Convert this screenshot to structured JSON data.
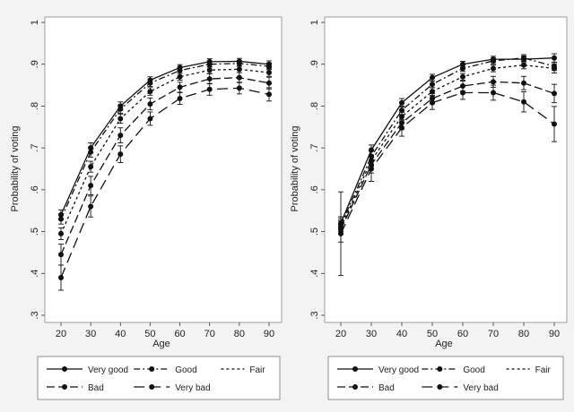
{
  "chart_data": [
    {
      "type": "line",
      "title": "",
      "xlabel": "Age",
      "ylabel": "Probability of voting",
      "x": [
        20,
        30,
        40,
        50,
        60,
        70,
        80,
        90
      ],
      "xticks": [
        "20",
        "30",
        "40",
        "50",
        "60",
        "70",
        "80",
        "90"
      ],
      "ylim": [
        0.3,
        1.0
      ],
      "yticks": [
        ".3",
        ".4",
        ".5",
        ".6",
        ".7",
        ".8",
        ".9",
        "1"
      ],
      "grid": false,
      "legend_placement": "bottom",
      "series": [
        {
          "name": "Very good",
          "dash": "solid",
          "values": [
            0.54,
            0.7,
            0.8,
            0.862,
            0.892,
            0.906,
            0.907,
            0.9
          ],
          "err": [
            0.012,
            0.012,
            0.01,
            0.008,
            0.007,
            0.007,
            0.007,
            0.008
          ]
        },
        {
          "name": "Good",
          "dash": "dashdot",
          "values": [
            0.53,
            0.69,
            0.793,
            0.855,
            0.885,
            0.9,
            0.902,
            0.895
          ],
          "err": [
            0.012,
            0.012,
            0.01,
            0.008,
            0.007,
            0.007,
            0.007,
            0.008
          ]
        },
        {
          "name": "Fair",
          "dash": "shortdash",
          "values": [
            0.495,
            0.655,
            0.77,
            0.835,
            0.87,
            0.886,
            0.888,
            0.88
          ],
          "err": [
            0.014,
            0.013,
            0.011,
            0.009,
            0.008,
            0.008,
            0.008,
            0.009
          ]
        },
        {
          "name": "Bad",
          "dash": "longdash",
          "values": [
            0.445,
            0.61,
            0.73,
            0.805,
            0.845,
            0.865,
            0.868,
            0.855
          ],
          "err": [
            0.025,
            0.022,
            0.018,
            0.014,
            0.012,
            0.012,
            0.012,
            0.014
          ]
        },
        {
          "name": "Very bad",
          "dash": "longdash2",
          "values": [
            0.39,
            0.56,
            0.685,
            0.77,
            0.818,
            0.84,
            0.843,
            0.828
          ],
          "err": [
            0.03,
            0.025,
            0.02,
            0.016,
            0.014,
            0.014,
            0.014,
            0.016
          ]
        }
      ]
    },
    {
      "type": "line",
      "title": "",
      "xlabel": "Age",
      "ylabel": "Probability of voting",
      "x": [
        20,
        30,
        40,
        50,
        60,
        70,
        80,
        90
      ],
      "xticks": [
        "20",
        "30",
        "40",
        "50",
        "60",
        "70",
        "80",
        "90"
      ],
      "ylim": [
        0.3,
        1.0
      ],
      "yticks": [
        ".3",
        ".4",
        ".5",
        ".6",
        ".7",
        ".8",
        ".9",
        "1"
      ],
      "grid": false,
      "legend_placement": "bottom",
      "series": [
        {
          "name": "Very good",
          "dash": "solid",
          "values": [
            0.52,
            0.695,
            0.808,
            0.868,
            0.9,
            0.912,
            0.912,
            0.915
          ],
          "err": [
            0.015,
            0.012,
            0.01,
            0.008,
            0.007,
            0.007,
            0.008,
            0.01
          ]
        },
        {
          "name": "Good",
          "dash": "dashdot",
          "values": [
            0.515,
            0.68,
            0.79,
            0.852,
            0.89,
            0.908,
            0.915,
            0.895
          ],
          "err": [
            0.015,
            0.012,
            0.01,
            0.008,
            0.007,
            0.007,
            0.008,
            0.01
          ]
        },
        {
          "name": "Fair",
          "dash": "shortdash",
          "values": [
            0.51,
            0.67,
            0.775,
            0.835,
            0.87,
            0.89,
            0.898,
            0.89
          ],
          "err": [
            0.016,
            0.013,
            0.01,
            0.009,
            0.008,
            0.008,
            0.009,
            0.011
          ]
        },
        {
          "name": "Bad",
          "dash": "longdash",
          "values": [
            0.505,
            0.66,
            0.76,
            0.818,
            0.848,
            0.858,
            0.855,
            0.83
          ],
          "err": [
            0.03,
            0.02,
            0.015,
            0.012,
            0.012,
            0.013,
            0.016,
            0.022
          ]
        },
        {
          "name": "Very bad",
          "dash": "longdash2",
          "values": [
            0.495,
            0.65,
            0.748,
            0.808,
            0.832,
            0.832,
            0.81,
            0.757
          ],
          "err": [
            0.1,
            0.03,
            0.02,
            0.016,
            0.016,
            0.018,
            0.024,
            0.042
          ]
        }
      ]
    }
  ]
}
